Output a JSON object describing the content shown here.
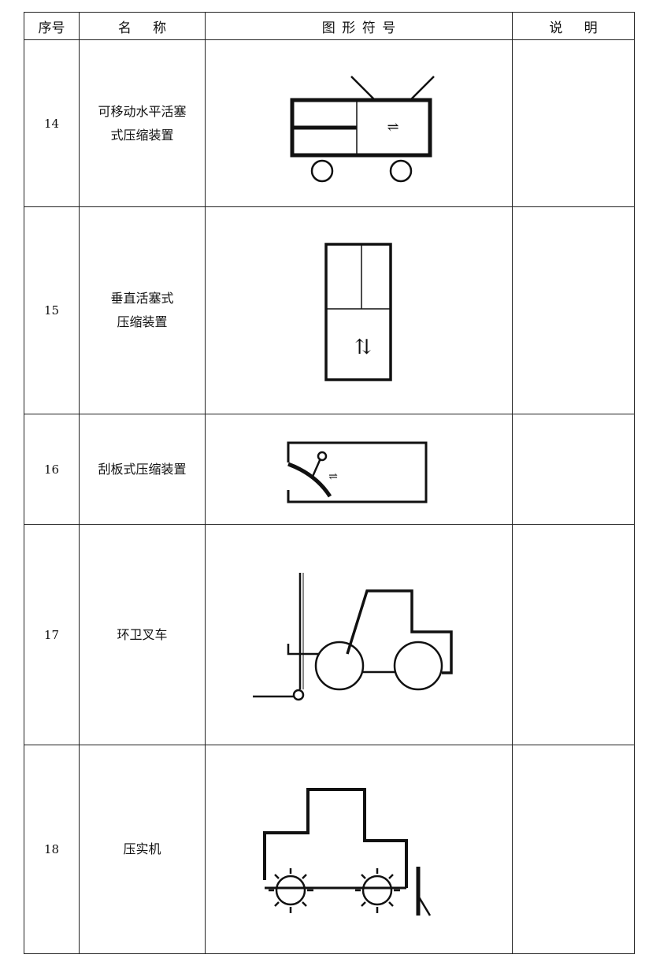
{
  "table": {
    "header": [
      "序号",
      "名称",
      "图形符号",
      "说明"
    ],
    "rows": [
      {
        "number": 14,
        "name_lines": [
          "可移动水平活塞",
          "式压缩装置"
        ]
      },
      {
        "number": 15,
        "name_lines": [
          "垂直活塞式",
          "压缩装置"
        ]
      },
      {
        "number": 16,
        "name_lines": [
          "刮板式压缩装置"
        ]
      },
      {
        "number": 17,
        "name_lines": [
          "环卫叉车"
        ]
      },
      {
        "number": 18,
        "name_lines": [
          "压实机"
        ]
      }
    ]
  }
}
